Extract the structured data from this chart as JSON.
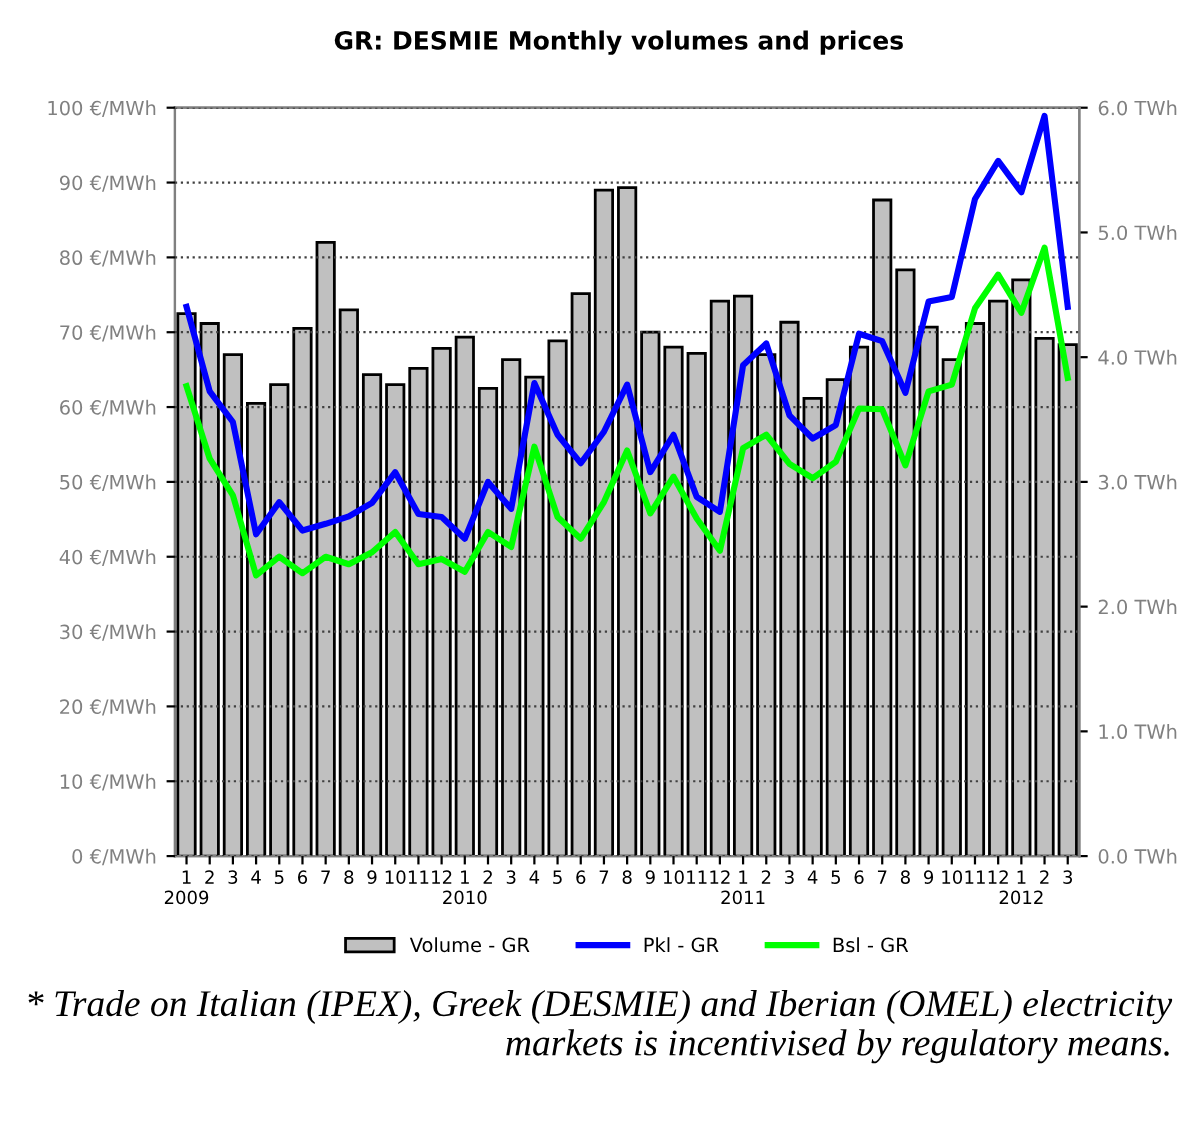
{
  "chart_data": {
    "type": "bar",
    "title": "GR: DESMIE Monthly volumes and prices",
    "categories": [
      "1\n2009",
      "2",
      "3",
      "4",
      "5",
      "6",
      "7",
      "8",
      "9",
      "10",
      "11",
      "12",
      "1\n2010",
      "2",
      "3",
      "4",
      "5",
      "6",
      "7",
      "8",
      "9",
      "10",
      "11",
      "12",
      "1\n2011",
      "2",
      "3",
      "4",
      "5",
      "6",
      "7",
      "8",
      "9",
      "10",
      "11",
      "12",
      "1\n2012",
      "2",
      "3"
    ],
    "series": [
      {
        "name": "Volume - GR",
        "axis": "y2",
        "color": "#c0c0c0",
        "values": [
          4.35,
          4.27,
          4.02,
          3.63,
          3.78,
          4.23,
          4.92,
          4.38,
          3.86,
          3.78,
          3.91,
          4.07,
          4.16,
          3.75,
          3.98,
          3.84,
          4.13,
          4.51,
          5.34,
          5.36,
          4.2,
          4.08,
          4.03,
          4.45,
          4.49,
          4.02,
          4.28,
          3.67,
          3.82,
          4.08,
          5.26,
          4.7,
          4.24,
          3.98,
          4.27,
          4.45,
          4.62,
          4.15,
          4.1
        ]
      },
      {
        "name": "Pkl - GR",
        "type": "line",
        "color": "#0000ff",
        "values": [
          73.4,
          62.1,
          58,
          43,
          47.3,
          43.5,
          44.4,
          45.4,
          47.2,
          51.3,
          45.7,
          45.3,
          42.4,
          50,
          46.4,
          63.2,
          56.3,
          52.5,
          56.7,
          63,
          51.3,
          56.3,
          48,
          46,
          65.6,
          68.5,
          58.9,
          55.8,
          57.6,
          69.8,
          68.8,
          61.9,
          74.1,
          74.7,
          87.8,
          92.9,
          88.7,
          98.9,
          73.4
        ]
      },
      {
        "name": "Bsl - GR",
        "type": "line",
        "color": "#00ff00",
        "values": [
          62.8,
          53.1,
          48.2,
          37.5,
          40,
          37.8,
          40,
          39,
          40.6,
          43.3,
          39,
          39.7,
          38,
          43.3,
          41.3,
          54.7,
          45.3,
          42.4,
          47.3,
          54.2,
          45.8,
          50.7,
          45.1,
          40.8,
          54.5,
          56.3,
          52.4,
          50.5,
          52.7,
          59.8,
          59.7,
          52.2,
          62.1,
          63,
          73.2,
          77.7,
          72.6,
          81.3,
          63.9
        ]
      }
    ],
    "ylim": [
      0,
      100
    ],
    "yticks": [
      {
        "value": 0,
        "label": "0 €/MWh"
      },
      {
        "value": 10,
        "label": "10 €/MWh"
      },
      {
        "value": 20,
        "label": "20 €/MWh"
      },
      {
        "value": 30,
        "label": "30 €/MWh"
      },
      {
        "value": 40,
        "label": "40 €/MWh"
      },
      {
        "value": 50,
        "label": "50 €/MWh"
      },
      {
        "value": 60,
        "label": "60 €/MWh"
      },
      {
        "value": 70,
        "label": "70 €/MWh"
      },
      {
        "value": 80,
        "label": "80 €/MWh"
      },
      {
        "value": 90,
        "label": "90 €/MWh"
      },
      {
        "value": 100,
        "label": "100 €/MWh"
      }
    ],
    "y2lim": [
      0,
      6
    ],
    "y2ticks": [
      {
        "value": 0,
        "label": "0.0 TWh"
      },
      {
        "value": 1,
        "label": "1.0 TWh"
      },
      {
        "value": 2,
        "label": "2.0 TWh"
      },
      {
        "value": 3,
        "label": "3.0 TWh"
      },
      {
        "value": 4,
        "label": "4.0 TWh"
      },
      {
        "value": 5,
        "label": "5.0 TWh"
      },
      {
        "value": 6,
        "label": "6.0 TWh"
      }
    ],
    "grid": "y",
    "legend": "bottom",
    "line_style": "solid",
    "marker": "none",
    "annotations": [
      "* Trade on Italian (IPEX), Greek (DESMIE) and Iberian (OMEL) electricity markets is incentivised by regulatory means."
    ]
  }
}
